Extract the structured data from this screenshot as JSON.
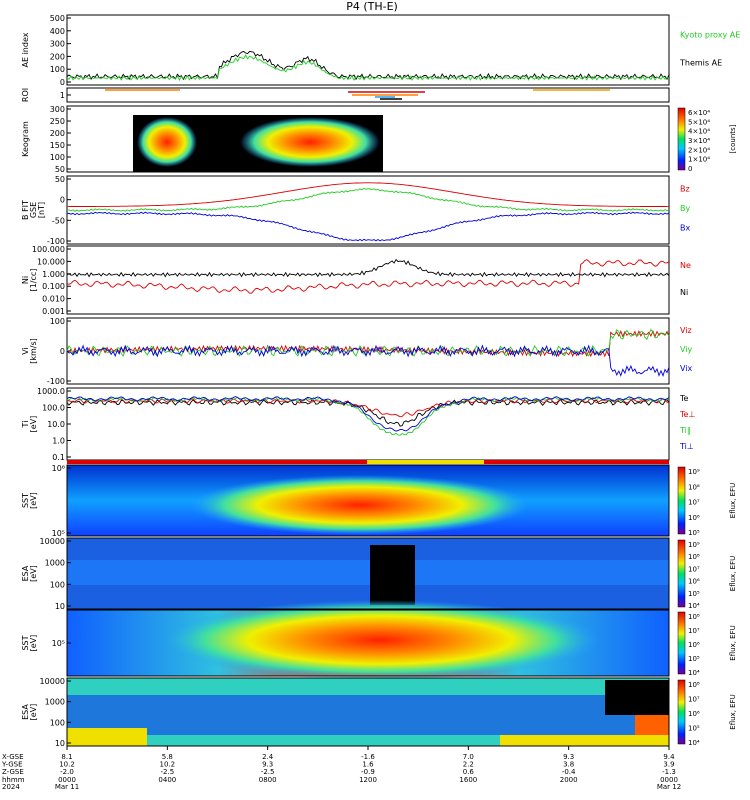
{
  "title": "P4 (TH-E)",
  "chart_data": {
    "type": "line",
    "title": "P4 (TH-E)",
    "x": {
      "ticks": [
        "0000",
        "0400",
        "0800",
        "1200",
        "1600",
        "2000",
        "0000"
      ],
      "label_hhmm": "hhmm",
      "label_year": "2024",
      "date_start": "Mar 11",
      "date_end": "Mar 12",
      "orbit_rows": [
        {
          "label": "X-GSE",
          "values": [
            "8.1",
            "5.8",
            "2.4",
            "-1.6",
            "7.0",
            "9.3",
            "9.4"
          ]
        },
        {
          "label": "Y-GSE",
          "values": [
            "10.2",
            "10.2",
            "9.3",
            "1.6",
            "2.2",
            "3.8",
            "3.9"
          ]
        },
        {
          "label": "Z-GSE",
          "values": [
            "-2.0",
            "-2.5",
            "-2.5",
            "-0.9",
            "0.6",
            "-0.4",
            "-1.3"
          ]
        }
      ]
    },
    "panels": [
      {
        "id": "ae",
        "ylabel": "AE index",
        "yticks": [
          "500",
          "400",
          "300",
          "200",
          "100",
          "0"
        ],
        "ylim": [
          -50,
          500
        ],
        "series": [
          {
            "name": "Kyoto proxy AE",
            "color": "#22cc22"
          },
          {
            "name": "Themis AE",
            "color": "#000000"
          }
        ]
      },
      {
        "id": "roi",
        "ylabel": "ROI",
        "yticks": [
          "1"
        ]
      },
      {
        "id": "keogram",
        "ylabel": "Keogram",
        "yticks": [
          "300",
          "250",
          "200",
          "150",
          "100",
          "50"
        ],
        "colorbar": {
          "label": "[counts]",
          "ticks": [
            "6×10⁴",
            "5×10⁴",
            "4×10⁴",
            "3×10⁴",
            "2×10⁴",
            "1×10⁴",
            "0"
          ]
        }
      },
      {
        "id": "bfield",
        "ylabel": "B FIT",
        "ylabel2": "GSE",
        "ylabel3": "[nT]",
        "yticks": [
          "50",
          "0",
          "-50",
          "-100"
        ],
        "ylim": [
          -100,
          100
        ],
        "series": [
          {
            "name": "Bz",
            "color": "#dd0000"
          },
          {
            "name": "By",
            "color": "#22cc22"
          },
          {
            "name": "Bx",
            "color": "#0000dd"
          }
        ]
      },
      {
        "id": "density",
        "ylabel": "Ni",
        "ylabel2": "[1/cc]",
        "yticks": [
          "100.000",
          "10.000",
          "1.000",
          "0.100",
          "0.010",
          "0.001"
        ],
        "series": [
          {
            "name": "Ne",
            "color": "#dd0000"
          },
          {
            "name": "Ni",
            "color": "#000000"
          }
        ]
      },
      {
        "id": "velocity",
        "ylabel": "Vi",
        "ylabel2": "[km/s]",
        "yticks": [
          "100",
          "0",
          "-100"
        ],
        "series": [
          {
            "name": "Viz",
            "color": "#dd0000"
          },
          {
            "name": "Viy",
            "color": "#22cc22"
          },
          {
            "name": "Vix",
            "color": "#0000dd"
          }
        ]
      },
      {
        "id": "temp",
        "ylabel": "Ti",
        "ylabel2": "[eV]",
        "yticks": [
          "1000.0",
          "100.0",
          "10.0",
          "1.0",
          "0.1"
        ],
        "series": [
          {
            "name": "Te",
            "color": "#000000"
          },
          {
            "name": "Te⊥",
            "color": "#dd0000"
          },
          {
            "name": "Ti∥",
            "color": "#22cc22"
          },
          {
            "name": "Ti⊥",
            "color": "#0000dd"
          }
        ]
      },
      {
        "id": "sst_e",
        "ylabel": "SST",
        "ylabel2": "[eV]",
        "yticks": [
          "10⁶",
          "10⁵"
        ],
        "colorbar": {
          "label": "Eflux, EFU",
          "ticks": [
            "10⁹",
            "10⁸",
            "10⁷",
            "10⁶",
            "10⁵"
          ]
        }
      },
      {
        "id": "esa_e",
        "ylabel": "ESA",
        "ylabel2": "[eV]",
        "yticks": [
          "10000",
          "1000",
          "100",
          "10"
        ],
        "colorbar": {
          "label": "Eflux, EFU",
          "ticks": [
            "10⁹",
            "10⁸",
            "10⁷",
            "10⁶",
            "10⁵",
            "10⁴"
          ]
        }
      },
      {
        "id": "sst_i",
        "ylabel": "SST",
        "ylabel2": "[eV]",
        "yticks": [
          "10⁵"
        ],
        "colorbar": {
          "label": "Eflux, EFU",
          "ticks": [
            "10⁸",
            "10⁷",
            "10⁶",
            "10⁵",
            "10⁴"
          ]
        }
      },
      {
        "id": "esa_i",
        "ylabel": "ESA",
        "ylabel2": "[eV]",
        "yticks": [
          "10000",
          "1000",
          "100",
          "10"
        ],
        "colorbar": {
          "label": "Eflux, EFU",
          "ticks": [
            "10⁸",
            "10⁷",
            "10⁶",
            "10⁵",
            "10⁴"
          ]
        }
      }
    ],
    "grid": false
  }
}
